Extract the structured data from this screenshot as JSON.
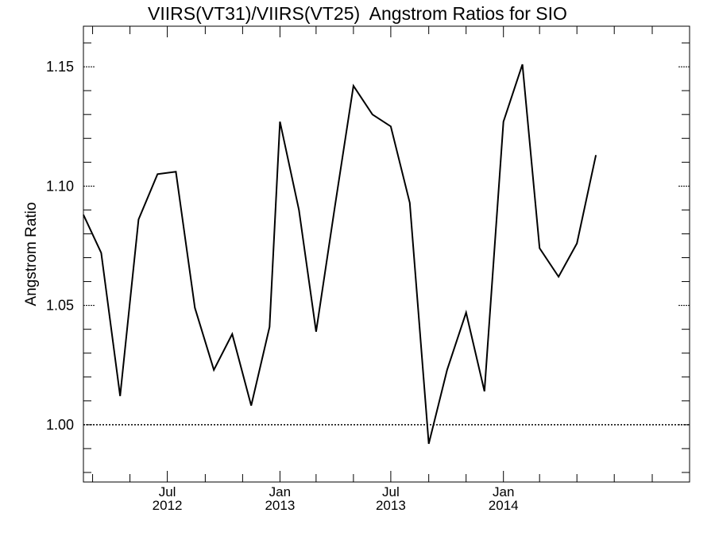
{
  "chart_data": {
    "type": "line",
    "title": "VIIRS(VT31)/VIIRS(VT25)  Angstrom Ratios for SIO",
    "xlabel": "",
    "ylabel": "Angstrom Ratio",
    "ylim": [
      0.976,
      1.167
    ],
    "xlim": [
      "2012-02-15",
      "2014-11-01"
    ],
    "yticks": [
      {
        "value": 1.0,
        "label": "1.00"
      },
      {
        "value": 1.05,
        "label": "1.05"
      },
      {
        "value": 1.1,
        "label": "1.10"
      },
      {
        "value": 1.15,
        "label": "1.15"
      }
    ],
    "xticks": [
      {
        "date": "2012-07-01",
        "month": "Jul",
        "year": "2012"
      },
      {
        "date": "2013-01-01",
        "month": "Jan",
        "year": "2013"
      },
      {
        "date": "2013-07-01",
        "month": "Jul",
        "year": "2013"
      },
      {
        "date": "2014-01-01",
        "month": "Jan",
        "year": "2014"
      }
    ],
    "reference_line": {
      "value": 1.0,
      "style": "dotted"
    },
    "grid": false,
    "series": [
      {
        "color": "#000000",
        "points": [
          {
            "x": "2012-02-15",
            "y": 1.088
          },
          {
            "x": "2012-03-15",
            "y": 1.072
          },
          {
            "x": "2012-04-15",
            "y": 1.012
          },
          {
            "x": "2012-05-15",
            "y": 1.086
          },
          {
            "x": "2012-06-15",
            "y": 1.105
          },
          {
            "x": "2012-07-15",
            "y": 1.106
          },
          {
            "x": "2012-08-15",
            "y": 1.049
          },
          {
            "x": "2012-09-15",
            "y": 1.023
          },
          {
            "x": "2012-10-15",
            "y": 1.038
          },
          {
            "x": "2012-11-15",
            "y": 1.008
          },
          {
            "x": "2012-12-15",
            "y": 1.041
          },
          {
            "x": "2013-01-01",
            "y": 1.127
          },
          {
            "x": "2013-02-01",
            "y": 1.09
          },
          {
            "x": "2013-03-01",
            "y": 1.039
          },
          {
            "x": "2013-04-01",
            "y": 1.092
          },
          {
            "x": "2013-05-01",
            "y": 1.142
          },
          {
            "x": "2013-06-01",
            "y": 1.13
          },
          {
            "x": "2013-07-01",
            "y": 1.125
          },
          {
            "x": "2013-08-01",
            "y": 1.093
          },
          {
            "x": "2013-09-01",
            "y": 0.992
          },
          {
            "x": "2013-10-01",
            "y": 1.023
          },
          {
            "x": "2013-11-01",
            "y": 1.047
          },
          {
            "x": "2013-12-01",
            "y": 1.014
          },
          {
            "x": "2014-01-01",
            "y": 1.127
          },
          {
            "x": "2014-02-01",
            "y": 1.151
          },
          {
            "x": "2014-03-01",
            "y": 1.074
          },
          {
            "x": "2014-04-01",
            "y": 1.062
          },
          {
            "x": "2014-05-01",
            "y": 1.076
          },
          {
            "x": "2014-06-01",
            "y": 1.113
          }
        ]
      }
    ]
  }
}
